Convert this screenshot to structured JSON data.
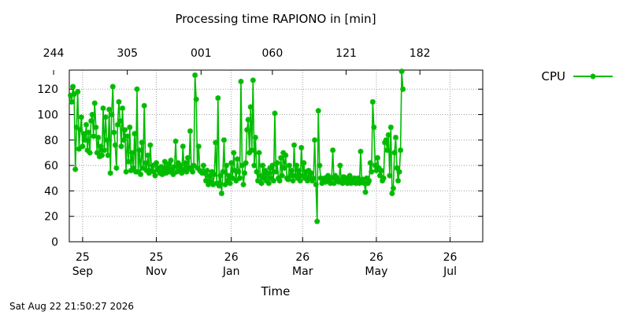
{
  "chart_data": {
    "type": "line",
    "title": "Processing time RAPIONO in [min]",
    "xlabel": "Time",
    "ylabel": "",
    "ylim": [
      0,
      135
    ],
    "yticks": [
      0,
      20,
      40,
      60,
      80,
      100,
      120
    ],
    "x_range": [
      "2025-09-14",
      "2026-08-22"
    ],
    "x_ticks": [
      {
        "date": "2025-09-25",
        "day": "25",
        "month": "Sep"
      },
      {
        "date": "2025-11-25",
        "day": "25",
        "month": "Nov"
      },
      {
        "date": "2026-01-26",
        "day": "26",
        "month": "Jan"
      },
      {
        "date": "2026-03-26",
        "day": "26",
        "month": "Mar"
      },
      {
        "date": "2026-05-26",
        "day": "26",
        "month": "May"
      },
      {
        "date": "2026-07-26",
        "day": "26",
        "month": "Jul"
      }
    ],
    "x2_ticks": [
      {
        "date": "2025-09-01",
        "label": "244"
      },
      {
        "date": "2025-11-01",
        "label": "305"
      },
      {
        "date": "2026-01-01",
        "label": "001"
      },
      {
        "date": "2026-03-01",
        "label": "060"
      },
      {
        "date": "2026-05-01",
        "label": "121"
      },
      {
        "date": "2026-07-01",
        "label": "182"
      }
    ],
    "grid": true,
    "legend": "top-right",
    "series": [
      {
        "name": "CPU",
        "color": "#00bb00",
        "marker": "star",
        "points": [
          [
            "2025-09-15",
            115
          ],
          [
            "2025-09-16",
            110
          ],
          [
            "2025-09-17",
            122
          ],
          [
            "2025-09-18",
            116
          ],
          [
            "2025-09-19",
            57
          ],
          [
            "2025-09-20",
            90
          ],
          [
            "2025-09-21",
            118
          ],
          [
            "2025-09-22",
            73
          ],
          [
            "2025-09-23",
            88
          ],
          [
            "2025-09-24",
            98
          ],
          [
            "2025-09-25",
            75
          ],
          [
            "2025-09-26",
            85
          ],
          [
            "2025-09-27",
            80
          ],
          [
            "2025-09-28",
            92
          ],
          [
            "2025-09-29",
            72
          ],
          [
            "2025-09-30",
            86
          ],
          [
            "2025-10-01",
            70
          ],
          [
            "2025-10-02",
            95
          ],
          [
            "2025-10-03",
            100
          ],
          [
            "2025-10-04",
            83
          ],
          [
            "2025-10-05",
            109
          ],
          [
            "2025-10-06",
            90
          ],
          [
            "2025-10-07",
            70
          ],
          [
            "2025-10-08",
            82
          ],
          [
            "2025-10-09",
            67
          ],
          [
            "2025-10-10",
            75
          ],
          [
            "2025-10-11",
            68
          ],
          [
            "2025-10-12",
            105
          ],
          [
            "2025-10-13",
            72
          ],
          [
            "2025-10-14",
            98
          ],
          [
            "2025-10-15",
            80
          ],
          [
            "2025-10-16",
            68
          ],
          [
            "2025-10-17",
            104
          ],
          [
            "2025-10-18",
            54
          ],
          [
            "2025-10-19",
            100
          ],
          [
            "2025-10-20",
            122
          ],
          [
            "2025-10-21",
            86
          ],
          [
            "2025-10-22",
            76
          ],
          [
            "2025-10-23",
            58
          ],
          [
            "2025-10-24",
            92
          ],
          [
            "2025-10-25",
            110
          ],
          [
            "2025-10-26",
            95
          ],
          [
            "2025-10-27",
            75
          ],
          [
            "2025-10-28",
            105
          ],
          [
            "2025-10-29",
            80
          ],
          [
            "2025-10-30",
            88
          ],
          [
            "2025-10-31",
            55
          ],
          [
            "2025-11-01",
            83
          ],
          [
            "2025-11-02",
            63
          ],
          [
            "2025-11-03",
            90
          ],
          [
            "2025-11-04",
            56
          ],
          [
            "2025-11-05",
            70
          ],
          [
            "2025-11-06",
            58
          ],
          [
            "2025-11-07",
            85
          ],
          [
            "2025-11-08",
            55
          ],
          [
            "2025-11-09",
            120
          ],
          [
            "2025-11-10",
            55
          ],
          [
            "2025-11-11",
            72
          ],
          [
            "2025-11-12",
            53
          ],
          [
            "2025-11-13",
            78
          ],
          [
            "2025-11-14",
            58
          ],
          [
            "2025-11-15",
            107
          ],
          [
            "2025-11-16",
            62
          ],
          [
            "2025-11-17",
            56
          ],
          [
            "2025-11-18",
            68
          ],
          [
            "2025-11-19",
            54
          ],
          [
            "2025-11-20",
            76
          ],
          [
            "2025-11-21",
            56
          ],
          [
            "2025-11-22",
            60
          ],
          [
            "2025-11-23",
            55
          ],
          [
            "2025-11-24",
            52
          ],
          [
            "2025-11-25",
            62
          ],
          [
            "2025-11-26",
            58
          ],
          [
            "2025-11-27",
            56
          ],
          [
            "2025-11-28",
            54
          ],
          [
            "2025-11-29",
            59
          ],
          [
            "2025-11-30",
            53
          ],
          [
            "2025-12-01",
            57
          ],
          [
            "2025-12-02",
            63
          ],
          [
            "2025-12-03",
            54
          ],
          [
            "2025-12-04",
            58
          ],
          [
            "2025-12-05",
            61
          ],
          [
            "2025-12-06",
            55
          ],
          [
            "2025-12-07",
            64
          ],
          [
            "2025-12-08",
            57
          ],
          [
            "2025-12-09",
            53
          ],
          [
            "2025-12-10",
            59
          ],
          [
            "2025-12-11",
            79
          ],
          [
            "2025-12-12",
            55
          ],
          [
            "2025-12-13",
            62
          ],
          [
            "2025-12-14",
            56
          ],
          [
            "2025-12-15",
            60
          ],
          [
            "2025-12-16",
            54
          ],
          [
            "2025-12-17",
            75
          ],
          [
            "2025-12-18",
            57
          ],
          [
            "2025-12-19",
            62
          ],
          [
            "2025-12-20",
            55
          ],
          [
            "2025-12-21",
            66
          ],
          [
            "2025-12-22",
            58
          ],
          [
            "2025-12-23",
            87
          ],
          [
            "2025-12-24",
            57
          ],
          [
            "2025-12-25",
            55
          ],
          [
            "2025-12-26",
            60
          ],
          [
            "2025-12-27",
            131
          ],
          [
            "2025-12-28",
            112
          ],
          [
            "2025-12-29",
            58
          ],
          [
            "2025-12-30",
            75
          ],
          [
            "2025-12-31",
            56
          ],
          [
            "2026-01-01",
            55
          ],
          [
            "2026-01-02",
            54
          ],
          [
            "2026-01-03",
            60
          ],
          [
            "2026-01-04",
            54
          ],
          [
            "2026-01-05",
            48
          ],
          [
            "2026-01-06",
            56
          ],
          [
            "2026-01-07",
            45
          ],
          [
            "2026-01-08",
            52
          ],
          [
            "2026-01-09",
            47
          ],
          [
            "2026-01-10",
            55
          ],
          [
            "2026-01-11",
            45
          ],
          [
            "2026-01-12",
            53
          ],
          [
            "2026-01-13",
            78
          ],
          [
            "2026-01-14",
            46
          ],
          [
            "2026-01-15",
            113
          ],
          [
            "2026-01-16",
            44
          ],
          [
            "2026-01-17",
            52
          ],
          [
            "2026-01-18",
            38
          ],
          [
            "2026-01-19",
            55
          ],
          [
            "2026-01-20",
            80
          ],
          [
            "2026-01-21",
            45
          ],
          [
            "2026-01-22",
            60
          ],
          [
            "2026-01-23",
            48
          ],
          [
            "2026-01-24",
            52
          ],
          [
            "2026-01-25",
            46
          ],
          [
            "2026-01-26",
            62
          ],
          [
            "2026-01-27",
            50
          ],
          [
            "2026-01-28",
            70
          ],
          [
            "2026-01-29",
            56
          ],
          [
            "2026-01-30",
            48
          ],
          [
            "2026-01-31",
            65
          ],
          [
            "2026-02-01",
            55
          ],
          [
            "2026-02-02",
            50
          ],
          [
            "2026-02-03",
            126
          ],
          [
            "2026-02-04",
            60
          ],
          [
            "2026-02-05",
            45
          ],
          [
            "2026-02-06",
            54
          ],
          [
            "2026-02-07",
            62
          ],
          [
            "2026-02-08",
            88
          ],
          [
            "2026-02-09",
            96
          ],
          [
            "2026-02-10",
            70
          ],
          [
            "2026-02-11",
            106
          ],
          [
            "2026-02-12",
            72
          ],
          [
            "2026-02-13",
            127
          ],
          [
            "2026-02-14",
            60
          ],
          [
            "2026-02-15",
            82
          ],
          [
            "2026-02-16",
            55
          ],
          [
            "2026-02-17",
            48
          ],
          [
            "2026-02-18",
            70
          ],
          [
            "2026-02-19",
            52
          ],
          [
            "2026-02-20",
            46
          ],
          [
            "2026-02-21",
            60
          ],
          [
            "2026-02-22",
            50
          ],
          [
            "2026-02-23",
            56
          ],
          [
            "2026-02-24",
            48
          ],
          [
            "2026-02-25",
            54
          ],
          [
            "2026-02-26",
            46
          ],
          [
            "2026-02-27",
            58
          ],
          [
            "2026-02-28",
            50
          ],
          [
            "2026-03-01",
            60
          ],
          [
            "2026-03-02",
            48
          ],
          [
            "2026-03-03",
            101
          ],
          [
            "2026-03-04",
            55
          ],
          [
            "2026-03-05",
            62
          ],
          [
            "2026-03-06",
            50
          ],
          [
            "2026-03-07",
            48
          ],
          [
            "2026-03-08",
            66
          ],
          [
            "2026-03-09",
            52
          ],
          [
            "2026-03-10",
            70
          ],
          [
            "2026-03-11",
            58
          ],
          [
            "2026-03-12",
            68
          ],
          [
            "2026-03-13",
            50
          ],
          [
            "2026-03-14",
            49
          ],
          [
            "2026-03-15",
            60
          ],
          [
            "2026-03-16",
            52
          ],
          [
            "2026-03-17",
            56
          ],
          [
            "2026-03-18",
            48
          ],
          [
            "2026-03-19",
            76
          ],
          [
            "2026-03-20",
            52
          ],
          [
            "2026-03-21",
            60
          ],
          [
            "2026-03-22",
            50
          ],
          [
            "2026-03-23",
            56
          ],
          [
            "2026-03-24",
            48
          ],
          [
            "2026-03-25",
            74
          ],
          [
            "2026-03-26",
            52
          ],
          [
            "2026-03-27",
            62
          ],
          [
            "2026-03-28",
            50
          ],
          [
            "2026-03-29",
            55
          ],
          [
            "2026-03-30",
            48
          ],
          [
            "2026-03-31",
            56
          ],
          [
            "2026-04-01",
            50
          ],
          [
            "2026-04-02",
            54
          ],
          [
            "2026-04-03",
            48
          ],
          [
            "2026-04-04",
            50
          ],
          [
            "2026-04-05",
            80
          ],
          [
            "2026-04-06",
            45
          ],
          [
            "2026-04-07",
            16
          ],
          [
            "2026-04-08",
            103
          ],
          [
            "2026-04-09",
            60
          ],
          [
            "2026-04-10",
            50
          ],
          [
            "2026-04-11",
            46
          ],
          [
            "2026-04-12",
            48
          ],
          [
            "2026-04-13",
            50
          ],
          [
            "2026-04-14",
            47
          ],
          [
            "2026-04-15",
            49
          ],
          [
            "2026-04-16",
            52
          ],
          [
            "2026-04-17",
            48
          ],
          [
            "2026-04-18",
            46
          ],
          [
            "2026-04-19",
            50
          ],
          [
            "2026-04-20",
            72
          ],
          [
            "2026-04-21",
            46
          ],
          [
            "2026-04-22",
            52
          ],
          [
            "2026-04-23",
            48
          ],
          [
            "2026-04-24",
            50
          ],
          [
            "2026-04-25",
            47
          ],
          [
            "2026-04-26",
            60
          ],
          [
            "2026-04-27",
            48
          ],
          [
            "2026-04-28",
            46
          ],
          [
            "2026-04-29",
            51
          ],
          [
            "2026-04-30",
            48
          ],
          [
            "2026-05-01",
            50
          ],
          [
            "2026-05-02",
            46
          ],
          [
            "2026-05-03",
            48
          ],
          [
            "2026-05-04",
            52
          ],
          [
            "2026-05-05",
            46
          ],
          [
            "2026-05-06",
            49
          ],
          [
            "2026-05-07",
            47
          ],
          [
            "2026-05-08",
            50
          ],
          [
            "2026-05-09",
            46
          ],
          [
            "2026-05-10",
            48
          ],
          [
            "2026-05-11",
            50
          ],
          [
            "2026-05-12",
            46
          ],
          [
            "2026-05-13",
            71
          ],
          [
            "2026-05-14",
            47
          ],
          [
            "2026-05-15",
            49
          ],
          [
            "2026-05-16",
            46
          ],
          [
            "2026-05-17",
            39
          ],
          [
            "2026-05-18",
            50
          ],
          [
            "2026-05-19",
            46
          ],
          [
            "2026-05-20",
            48
          ],
          [
            "2026-05-21",
            62
          ],
          [
            "2026-05-22",
            55
          ],
          [
            "2026-05-23",
            110
          ],
          [
            "2026-05-24",
            90
          ],
          [
            "2026-05-25",
            60
          ],
          [
            "2026-05-26",
            56
          ],
          [
            "2026-05-27",
            66
          ],
          [
            "2026-05-28",
            58
          ],
          [
            "2026-05-29",
            52
          ],
          [
            "2026-05-30",
            56
          ],
          [
            "2026-05-31",
            48
          ],
          [
            "2026-06-01",
            50
          ],
          [
            "2026-06-02",
            78
          ],
          [
            "2026-06-03",
            80
          ],
          [
            "2026-06-04",
            72
          ],
          [
            "2026-06-05",
            84
          ],
          [
            "2026-06-06",
            52
          ],
          [
            "2026-06-07",
            90
          ],
          [
            "2026-06-08",
            38
          ],
          [
            "2026-06-09",
            42
          ],
          [
            "2026-06-10",
            70
          ],
          [
            "2026-06-11",
            82
          ],
          [
            "2026-06-12",
            58
          ],
          [
            "2026-06-13",
            48
          ],
          [
            "2026-06-14",
            55
          ],
          [
            "2026-06-15",
            72
          ],
          [
            "2026-06-16",
            134
          ],
          [
            "2026-06-17",
            120
          ]
        ]
      }
    ]
  },
  "footer": {
    "timestamp": "Sat Aug 22 21:50:27 2026"
  }
}
